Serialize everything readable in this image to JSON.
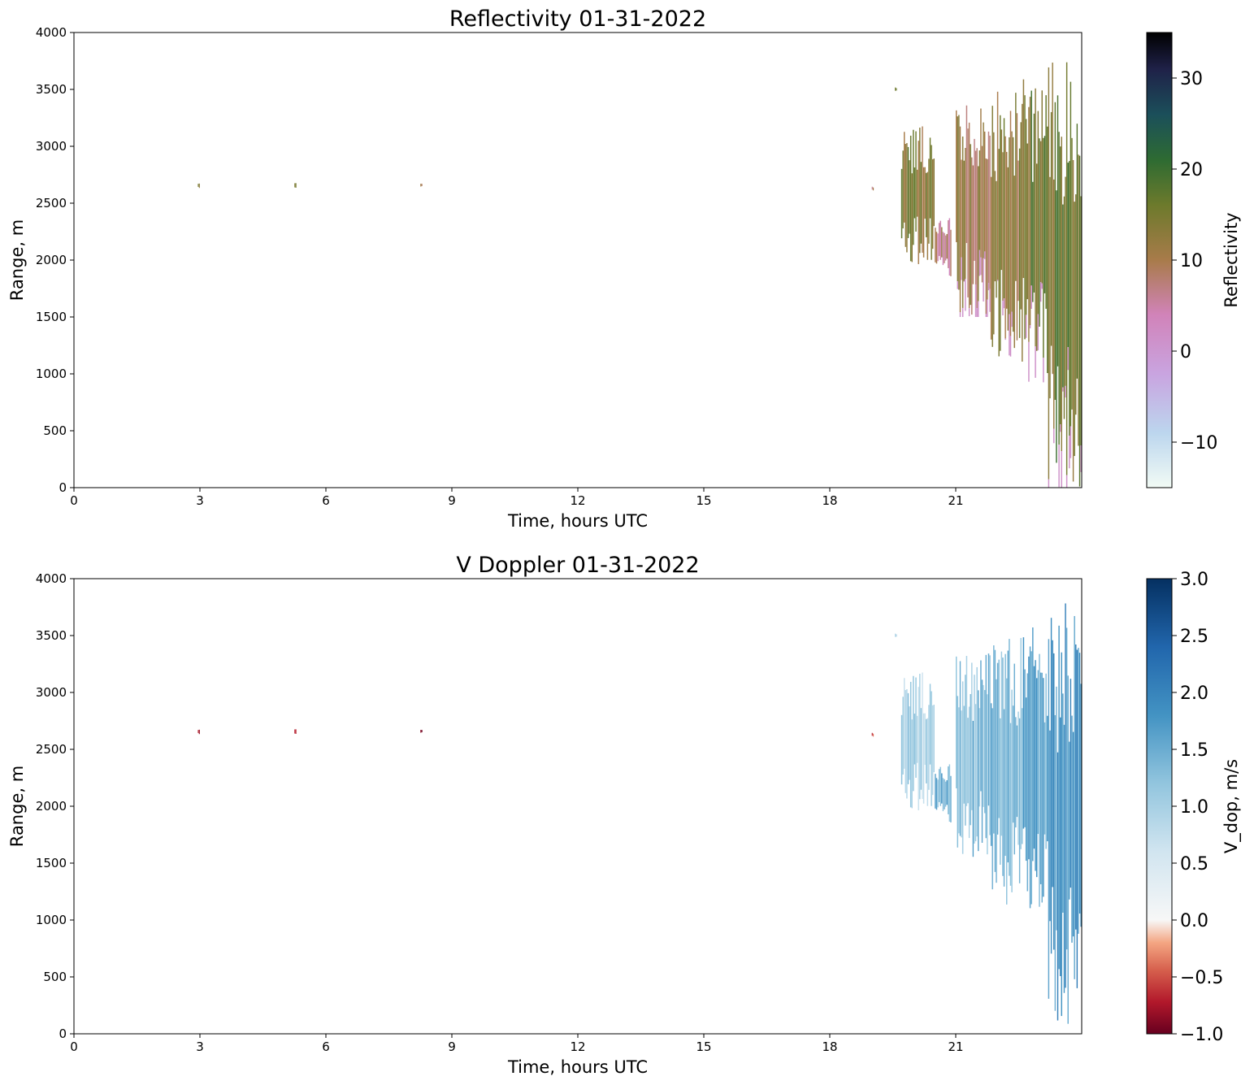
{
  "chart_data": [
    {
      "type": "heatmap",
      "title": "Reflectivity 01-31-2022",
      "xlabel": "Time, hours UTC",
      "ylabel": "Range, m",
      "xlim": [
        0,
        24
      ],
      "ylim": [
        0,
        4000
      ],
      "xticks": [
        0,
        3,
        6,
        9,
        12,
        15,
        18,
        21
      ],
      "yticks": [
        0,
        500,
        1000,
        1500,
        2000,
        2500,
        3000,
        3500,
        4000
      ],
      "colorbar": {
        "label": "Reflectivity",
        "range": [
          -15,
          35
        ],
        "ticks": [
          -10,
          0,
          10,
          20,
          30
        ],
        "tick_labels": [
          "−10",
          "0",
          "10",
          "20",
          "30"
        ],
        "colormap": "cubehelix_r"
      },
      "regions": [
        {
          "x0": 2.95,
          "x1": 3.0,
          "y0": 2630,
          "y1": 2680,
          "z": 12
        },
        {
          "x0": 5.25,
          "x1": 5.3,
          "y0": 2630,
          "y1": 2680,
          "z": 12
        },
        {
          "x0": 8.25,
          "x1": 8.3,
          "y0": 2640,
          "y1": 2680,
          "z": 12
        },
        {
          "x0": 19.0,
          "x1": 19.05,
          "y0": 2610,
          "y1": 2650,
          "z": 6
        },
        {
          "x0": 19.55,
          "x1": 19.6,
          "y0": 3480,
          "y1": 3520,
          "z": 14
        },
        {
          "x0": 19.7,
          "x1": 20.5,
          "y0": 1950,
          "y1": 3200,
          "z": 14
        },
        {
          "x0": 20.5,
          "x1": 20.9,
          "y0": 1850,
          "y1": 2400,
          "z": 8
        },
        {
          "x0": 21.0,
          "x1": 21.8,
          "y0": 1500,
          "y1": 3400,
          "z": 11
        },
        {
          "x0": 21.8,
          "x1": 22.6,
          "y0": 1100,
          "y1": 3500,
          "z": 12
        },
        {
          "x0": 22.6,
          "x1": 23.2,
          "y0": 900,
          "y1": 3600,
          "z": 16
        },
        {
          "x0": 23.2,
          "x1": 24.0,
          "y0": 0,
          "y1": 3800,
          "z": 16
        }
      ]
    },
    {
      "type": "heatmap",
      "title": "V Doppler 01-31-2022",
      "xlabel": "Time, hours UTC",
      "ylabel": "Range, m",
      "xlim": [
        0,
        24
      ],
      "ylim": [
        0,
        4000
      ],
      "xticks": [
        0,
        3,
        6,
        9,
        12,
        15,
        18,
        21
      ],
      "yticks": [
        0,
        500,
        1000,
        1500,
        2000,
        2500,
        3000,
        3500,
        4000
      ],
      "colorbar": {
        "label": "V_dop, m/s",
        "range": [
          -1.0,
          3.0
        ],
        "ticks": [
          -1.0,
          -0.5,
          0.0,
          0.5,
          1.0,
          1.5,
          2.0,
          2.5,
          3.0
        ],
        "tick_labels": [
          "−1.0",
          "−0.5",
          "0.0",
          "0.5",
          "1.0",
          "1.5",
          "2.0",
          "2.5",
          "3.0"
        ],
        "colormap": "RdBu (two-slope, center 0)"
      },
      "regions": [
        {
          "x0": 2.95,
          "x1": 3.0,
          "y0": 2630,
          "y1": 2680,
          "z": -0.9
        },
        {
          "x0": 5.25,
          "x1": 5.3,
          "y0": 2630,
          "y1": 2680,
          "z": -0.9
        },
        {
          "x0": 8.25,
          "x1": 8.3,
          "y0": 2640,
          "y1": 2680,
          "z": -0.8
        },
        {
          "x0": 19.0,
          "x1": 19.05,
          "y0": 2610,
          "y1": 2650,
          "z": -0.7
        },
        {
          "x0": 19.55,
          "x1": 19.6,
          "y0": 3480,
          "y1": 3520,
          "z": 0.8
        },
        {
          "x0": 19.7,
          "x1": 20.5,
          "y0": 1950,
          "y1": 3200,
          "z": 1.0
        },
        {
          "x0": 20.5,
          "x1": 20.9,
          "y0": 1850,
          "y1": 2400,
          "z": 1.5
        },
        {
          "x0": 21.0,
          "x1": 21.8,
          "y0": 1500,
          "y1": 3400,
          "z": 1.3
        },
        {
          "x0": 21.8,
          "x1": 22.6,
          "y0": 1100,
          "y1": 3500,
          "z": 1.4
        },
        {
          "x0": 22.6,
          "x1": 23.2,
          "y0": 900,
          "y1": 3600,
          "z": 1.6
        },
        {
          "x0": 23.2,
          "x1": 24.0,
          "y0": 0,
          "y1": 3800,
          "z": 1.8
        }
      ]
    }
  ]
}
